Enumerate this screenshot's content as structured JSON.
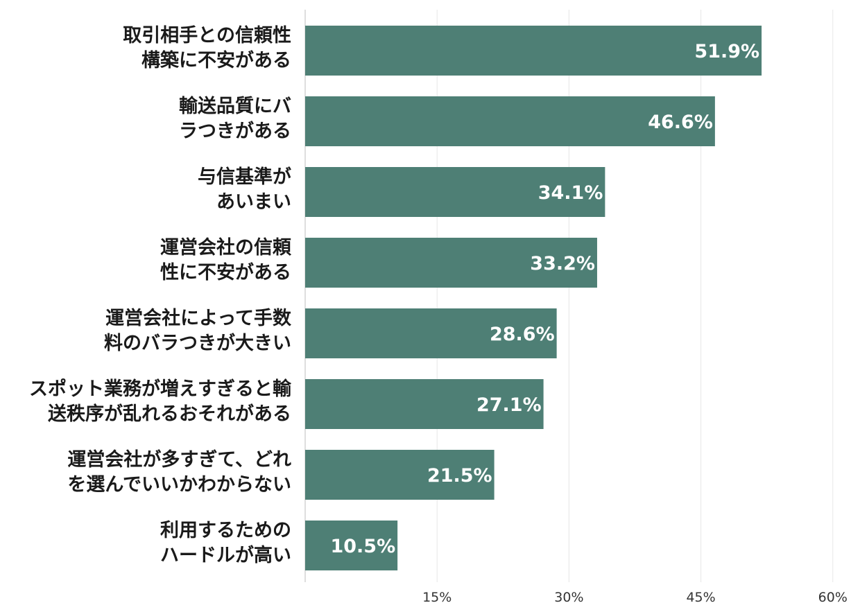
{
  "chart_data": {
    "type": "bar",
    "orientation": "horizontal",
    "categories": [
      [
        "取引相手との信頼性",
        "構築に不安がある"
      ],
      [
        "輸送品質にバ",
        "ラつきがある"
      ],
      [
        "与信基準が",
        "あいまい"
      ],
      [
        "運営会社の信頼",
        "性に不安がある"
      ],
      [
        "運営会社によって手数",
        "料のバラつきが大きい"
      ],
      [
        "スポット業務が増えすぎると輸",
        "送秩序が乱れるおそれがある"
      ],
      [
        "運営会社が多すぎて、どれ",
        "を選んでいいかわからない"
      ],
      [
        "利用するための",
        "ハードルが高い"
      ]
    ],
    "values": [
      51.9,
      46.6,
      34.1,
      33.2,
      28.6,
      27.1,
      21.5,
      10.5
    ],
    "value_labels": [
      "51.9%",
      "46.6%",
      "34.1%",
      "33.2%",
      "28.6%",
      "27.1%",
      "21.5%",
      "10.5%"
    ],
    "xlim": [
      0,
      60
    ],
    "ticks": [
      15,
      30,
      45,
      60
    ],
    "tick_labels": [
      "15%",
      "30%",
      "45%",
      "60%"
    ],
    "title": "",
    "xlabel": "",
    "ylabel": "",
    "grid": true,
    "legend": "none",
    "bar_color": "#4e7f75",
    "grid_color": "#e6e6e6"
  }
}
